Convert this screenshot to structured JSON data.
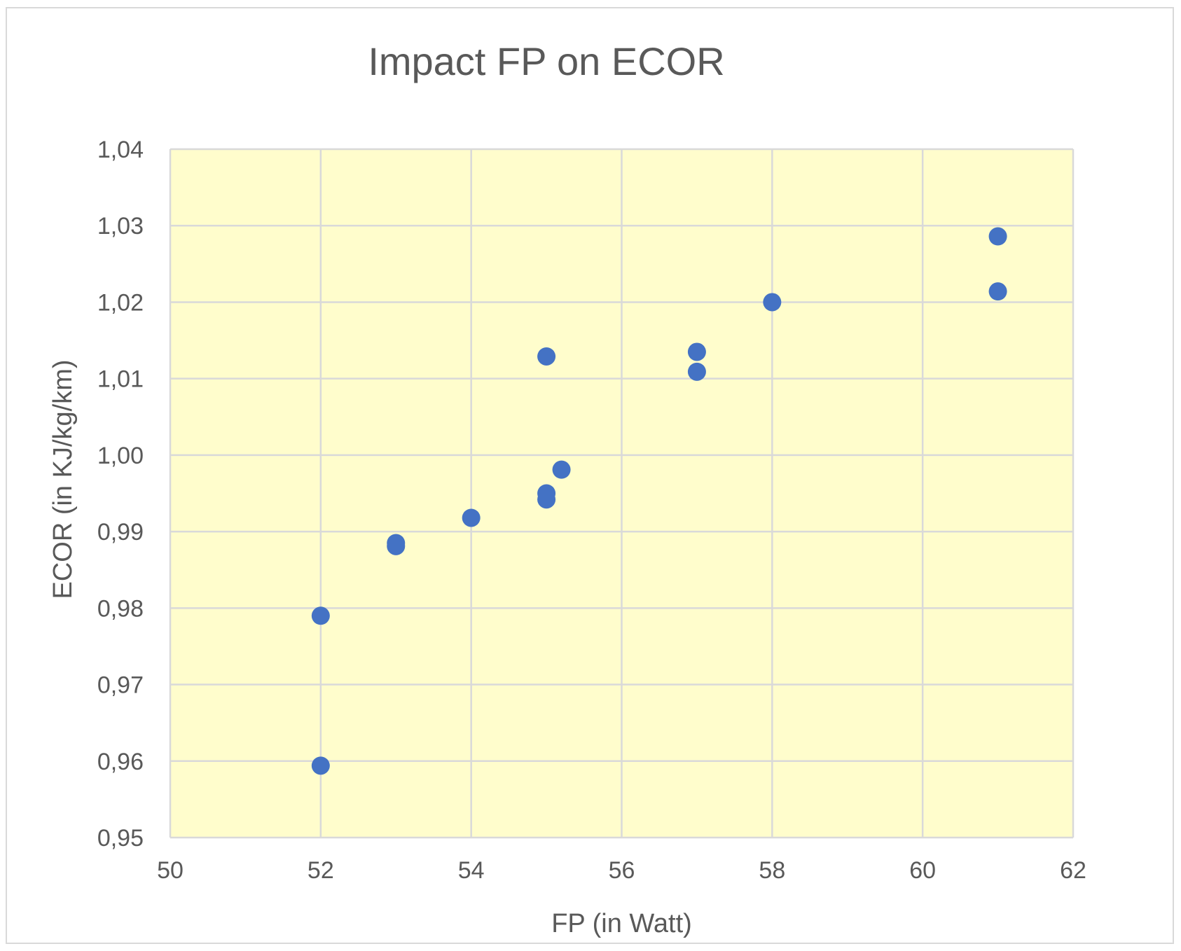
{
  "chart_data": {
    "type": "scatter",
    "title": "Impact FP on ECOR",
    "xlabel": "FP (in Watt)",
    "ylabel": "ECOR (in KJ/kg/km)",
    "xlim": [
      50,
      62
    ],
    "ylim": [
      0.95,
      1.04
    ],
    "x_ticks": [
      50,
      52,
      54,
      56,
      58,
      60,
      62
    ],
    "x_tick_labels": [
      "50",
      "52",
      "54",
      "56",
      "58",
      "60",
      "62"
    ],
    "y_ticks": [
      0.95,
      0.96,
      0.97,
      0.98,
      0.99,
      1.0,
      1.01,
      1.02,
      1.03,
      1.04
    ],
    "y_tick_labels": [
      "0,95",
      "0,96",
      "0,97",
      "0,98",
      "0,99",
      "1,00",
      "1,01",
      "1,02",
      "1,03",
      "1,04"
    ],
    "grid": true,
    "colors": {
      "plot_background": "#fffdcc",
      "grid": "#d9d9d9",
      "marker": "#4472c4",
      "text": "#595959"
    },
    "series": [
      {
        "name": "ECOR",
        "points": [
          {
            "x": 52,
            "y": 0.9594
          },
          {
            "x": 52,
            "y": 0.979
          },
          {
            "x": 53,
            "y": 0.9881
          },
          {
            "x": 53,
            "y": 0.9885
          },
          {
            "x": 54,
            "y": 0.9918
          },
          {
            "x": 55,
            "y": 0.9942
          },
          {
            "x": 55,
            "y": 0.995
          },
          {
            "x": 55.2,
            "y": 0.9981
          },
          {
            "x": 55,
            "y": 1.0129
          },
          {
            "x": 57,
            "y": 1.0109
          },
          {
            "x": 57,
            "y": 1.0135
          },
          {
            "x": 58,
            "y": 1.02
          },
          {
            "x": 61,
            "y": 1.0214
          },
          {
            "x": 61,
            "y": 1.0286
          }
        ]
      }
    ]
  }
}
